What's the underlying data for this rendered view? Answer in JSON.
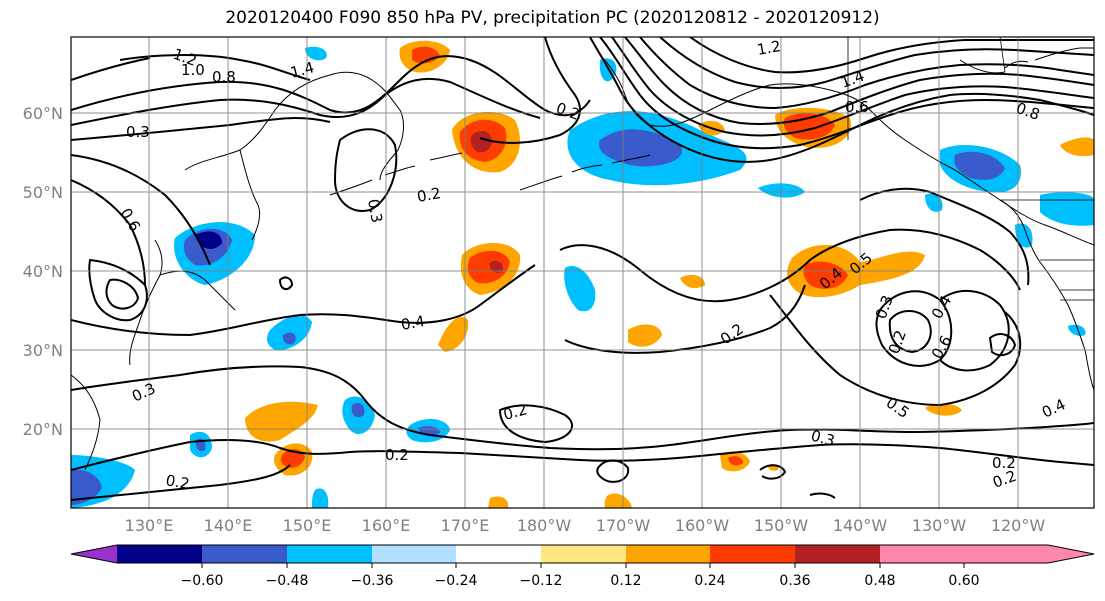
{
  "title": "2020120400 F090 850 hPa PV, precipitation PC (2020120812 - 2020120912)",
  "map": {
    "lat_labels": [
      "60°N",
      "50°N",
      "40°N",
      "30°N",
      "20°N"
    ],
    "lon_labels": [
      "130°E",
      "140°E",
      "150°E",
      "160°E",
      "170°E",
      "180°W",
      "170°W",
      "160°W",
      "150°W",
      "140°W",
      "130°W",
      "120°W"
    ],
    "contour_labels": [
      "1.2",
      "1.0",
      "0.8",
      "1.4",
      "0.3",
      "0.6",
      "0.2",
      "0.3",
      "0.2",
      "0.4",
      "0.2",
      "0.2",
      "0.3",
      "0.2",
      "0.2",
      "0.4",
      "0.5",
      "0.4",
      "0.3",
      "0.2",
      "0.6",
      "0.5",
      "0.4",
      "0.3",
      "0.2",
      "0.2",
      "1.2",
      "1.4",
      "0.6",
      "0.8"
    ]
  },
  "colorbar": {
    "ticks": [
      "−0.60",
      "−0.48",
      "−0.36",
      "−0.24",
      "−0.12",
      "0.12",
      "0.24",
      "0.36",
      "0.48",
      "0.60"
    ],
    "colors": [
      "#9932cc",
      "#00008b",
      "#3a5bcc",
      "#00bfff",
      "#b0e0ff",
      "#ffffff",
      "#ffe680",
      "#ffa500",
      "#ff3c00",
      "#b22222",
      "#ff88aa"
    ]
  }
}
